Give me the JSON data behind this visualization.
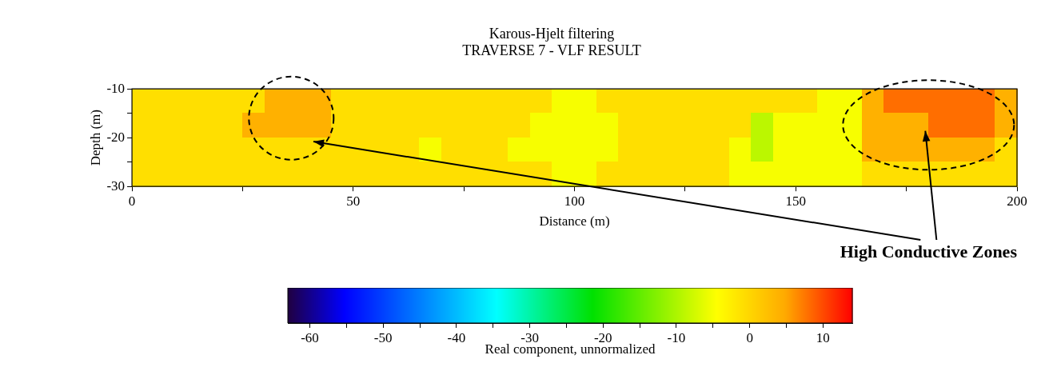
{
  "chart_data": {
    "type": "heatmap",
    "title": "Karous-Hjelt filtering",
    "subtitle": "TRAVERSE 7 - VLF RESULT",
    "xlabel": "Distance (m)",
    "ylabel": "Depth (m)",
    "clabel": "Real component, unnormalized",
    "x": [
      2.5,
      7.5,
      12.5,
      17.5,
      22.5,
      27.5,
      32.5,
      37.5,
      42.5,
      47.5,
      52.5,
      57.5,
      62.5,
      67.5,
      72.5,
      77.5,
      82.5,
      87.5,
      92.5,
      97.5,
      102.5,
      107.5,
      112.5,
      117.5,
      122.5,
      127.5,
      132.5,
      137.5,
      142.5,
      147.5,
      152.5,
      157.5,
      162.5,
      167.5,
      172.5,
      177.5,
      182.5,
      187.5,
      192.5,
      197.5
    ],
    "y": [
      -12.5,
      -17.5,
      -22.5,
      -27.5
    ],
    "cells": [
      [
        -1,
        -1,
        -1,
        -1,
        -1,
        -1,
        4,
        4,
        4,
        -1,
        -1,
        -1,
        -1,
        -1,
        -1,
        -1,
        -1,
        -1,
        -1,
        -5,
        -5,
        -1,
        -1,
        -1,
        -1,
        -1,
        -1,
        -1,
        -1,
        -1,
        -1,
        -5,
        -5,
        4,
        8,
        8,
        8,
        8,
        8,
        4
      ],
      [
        -1,
        -1,
        -1,
        -1,
        -1,
        4,
        4,
        4,
        4,
        -1,
        -1,
        -1,
        -1,
        -1,
        -1,
        -1,
        -1,
        -1,
        -5,
        -5,
        -5,
        -5,
        -1,
        -1,
        -1,
        -1,
        -1,
        -1,
        -9,
        -5,
        -5,
        -5,
        -5,
        4,
        4,
        4,
        8,
        8,
        8,
        4
      ],
      [
        -1,
        -1,
        -1,
        -1,
        -1,
        -1,
        -1,
        -1,
        -1,
        -1,
        -1,
        -1,
        -1,
        -5,
        -1,
        -1,
        -1,
        -5,
        -5,
        -5,
        -5,
        -5,
        -1,
        -1,
        -1,
        -1,
        -1,
        -5,
        -9,
        -5,
        -5,
        -5,
        -5,
        4,
        4,
        4,
        4,
        4,
        4,
        -1
      ],
      [
        -1,
        -1,
        -1,
        -1,
        -1,
        -1,
        -1,
        -1,
        -1,
        -1,
        -1,
        -1,
        -1,
        -1,
        -1,
        -1,
        -1,
        -1,
        -1,
        -5,
        -5,
        -1,
        -1,
        -1,
        -1,
        -1,
        -1,
        -5,
        -5,
        -5,
        -5,
        -5,
        -5,
        -1,
        -1,
        -1,
        -1,
        -1,
        -1,
        -1
      ]
    ],
    "xlim": [
      0,
      200
    ],
    "xticks": [
      0,
      {
        "value": 25,
        "label": null
      },
      50,
      {
        "value": 75,
        "label": null
      },
      100,
      {
        "value": 125,
        "label": null
      },
      150,
      {
        "value": 175,
        "label": null
      },
      200
    ],
    "ylim": [
      -30,
      -10
    ],
    "yticks": [
      -30,
      {
        "value": -25,
        "label": null
      },
      -20,
      {
        "value": -15,
        "label": null
      },
      -10
    ],
    "clim": [
      -63,
      14
    ],
    "cticks": [
      -60,
      {
        "value": -55,
        "label": null
      },
      -50,
      {
        "value": -45,
        "label": null
      },
      -40,
      {
        "value": -35,
        "label": null
      },
      -30,
      {
        "value": -25,
        "label": null
      },
      -20,
      {
        "value": -15,
        "label": null
      },
      -10,
      {
        "value": -5,
        "label": null
      },
      0,
      {
        "value": 5,
        "label": null
      },
      10
    ],
    "annotations": [
      "High Conductive Zones"
    ]
  }
}
